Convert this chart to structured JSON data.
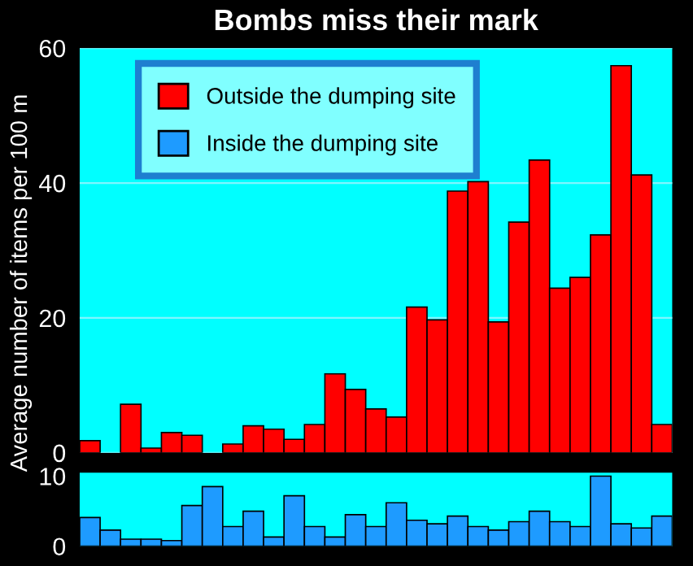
{
  "chart_data": [
    {
      "type": "bar",
      "title": "Bombs miss their mark",
      "ylabel": "Average number of items per 100 m",
      "categories": [
        null,
        null,
        null,
        null,
        null,
        null,
        null,
        null,
        null,
        null,
        null,
        null,
        null,
        null,
        null,
        null,
        null,
        null,
        null,
        null,
        null,
        null,
        null,
        null,
        null,
        null,
        null,
        null,
        null
      ],
      "series": [
        {
          "name": "Outside the dumping site",
          "color": "#ff0000",
          "values": [
            1.8,
            0,
            7.2,
            0.7,
            3.0,
            2.6,
            0,
            1.3,
            4.0,
            3.5,
            2.0,
            4.2,
            11.7,
            9.4,
            6.5,
            5.3,
            21.6,
            19.7,
            38.8,
            40.2,
            19.4,
            34.2,
            43.4,
            24.4,
            26.0,
            32.3,
            57.4,
            41.2,
            4.2
          ]
        }
      ],
      "ylim": [
        0,
        60
      ],
      "yticks": [
        0,
        20,
        40,
        60
      ],
      "grid": "y",
      "legend": "top left",
      "tick_labels": "y"
    },
    {
      "type": "bar",
      "categories": [
        null,
        null,
        null,
        null,
        null,
        null,
        null,
        null,
        null,
        null,
        null,
        null,
        null,
        null,
        null,
        null,
        null,
        null,
        null,
        null,
        null,
        null,
        null,
        null,
        null,
        null,
        null,
        null,
        null
      ],
      "series": [
        {
          "name": "Inside the dumping site",
          "color": "#1e9bff",
          "values": [
            4.1,
            2.3,
            1.0,
            1.0,
            0.8,
            5.8,
            8.5,
            2.8,
            5.0,
            1.3,
            7.2,
            2.8,
            1.3,
            4.5,
            2.8,
            6.2,
            3.7,
            3.2,
            4.3,
            2.8,
            2.3,
            3.5,
            5.0,
            3.5,
            2.8,
            10.0,
            3.2,
            2.6,
            4.3
          ]
        }
      ],
      "ylim": [
        0,
        10.5
      ],
      "yticks": [
        0,
        10
      ],
      "tick_labels": "y"
    }
  ]
}
